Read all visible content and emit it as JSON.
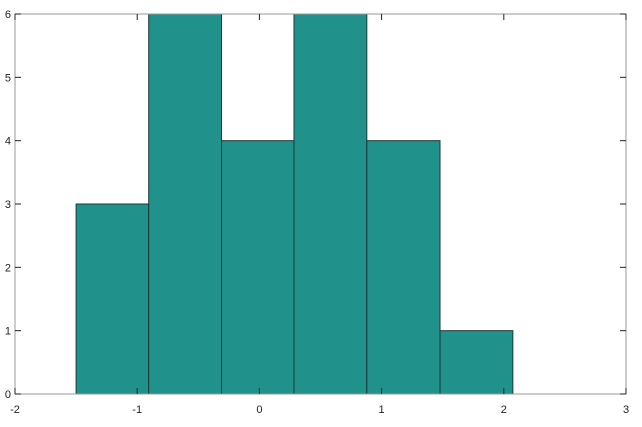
{
  "chart_data": {
    "type": "bar",
    "subtype": "histogram",
    "bin_edges": [
      -1.5,
      -0.906,
      -0.31,
      0.283,
      0.879,
      1.478,
      2.074
    ],
    "values": [
      3,
      6,
      4,
      6,
      4,
      1
    ],
    "xlim": [
      -2,
      3
    ],
    "ylim": [
      0,
      6
    ],
    "xticks": [
      "-2",
      "-1",
      "0",
      "1",
      "2",
      "3"
    ],
    "yticks": [
      "0",
      "1",
      "2",
      "3",
      "4",
      "5",
      "6"
    ],
    "title": "",
    "xlabel": "",
    "ylabel": "",
    "grid": false,
    "bar_color": "#21918c",
    "edge_color": "#1a3a38"
  }
}
